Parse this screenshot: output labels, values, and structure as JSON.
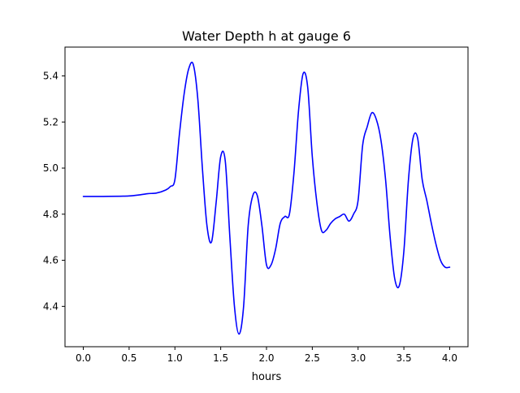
{
  "chart_data": {
    "type": "line",
    "title": "Water Depth h at gauge 6",
    "xlabel": "hours",
    "ylabel": "",
    "xlim": [
      -0.2,
      4.2
    ],
    "ylim": [
      4.225,
      5.525
    ],
    "xticks": [
      0.0,
      0.5,
      1.0,
      1.5,
      2.0,
      2.5,
      3.0,
      3.5,
      4.0
    ],
    "xtick_labels": [
      "0.0",
      "0.5",
      "1.0",
      "1.5",
      "2.0",
      "2.5",
      "3.0",
      "3.5",
      "4.0"
    ],
    "yticks": [
      4.4,
      4.6,
      4.8,
      5.0,
      5.2,
      5.4
    ],
    "ytick_labels": [
      "4.4",
      "4.6",
      "4.8",
      "5.0",
      "5.2",
      "5.4"
    ],
    "grid": false,
    "series": [
      {
        "color": "#0000ff",
        "x": [
          0.0,
          0.2,
          0.4,
          0.5,
          0.6,
          0.7,
          0.8,
          0.9,
          0.95,
          1.0,
          1.05,
          1.1,
          1.15,
          1.2,
          1.25,
          1.3,
          1.35,
          1.4,
          1.45,
          1.5,
          1.55,
          1.6,
          1.65,
          1.7,
          1.75,
          1.8,
          1.85,
          1.9,
          1.95,
          2.0,
          2.05,
          2.1,
          2.15,
          2.2,
          2.25,
          2.3,
          2.35,
          2.4,
          2.45,
          2.5,
          2.55,
          2.6,
          2.65,
          2.7,
          2.75,
          2.8,
          2.85,
          2.9,
          2.95,
          3.0,
          3.05,
          3.1,
          3.15,
          3.2,
          3.25,
          3.3,
          3.35,
          3.4,
          3.45,
          3.5,
          3.55,
          3.6,
          3.65,
          3.7,
          3.75,
          3.8,
          3.85,
          3.9,
          3.95,
          4.0
        ],
        "y": [
          4.877,
          4.877,
          4.878,
          4.879,
          4.883,
          4.889,
          4.892,
          4.905,
          4.92,
          4.95,
          5.15,
          5.32,
          5.43,
          5.45,
          5.3,
          5.0,
          4.75,
          4.68,
          4.85,
          5.05,
          5.03,
          4.7,
          4.4,
          4.28,
          4.4,
          4.75,
          4.88,
          4.88,
          4.75,
          4.58,
          4.58,
          4.65,
          4.76,
          4.79,
          4.8,
          4.98,
          5.25,
          5.41,
          5.35,
          5.05,
          4.85,
          4.73,
          4.73,
          4.76,
          4.78,
          4.79,
          4.8,
          4.77,
          4.8,
          4.86,
          5.1,
          5.18,
          5.24,
          5.21,
          5.12,
          4.95,
          4.7,
          4.52,
          4.49,
          4.64,
          4.95,
          5.13,
          5.13,
          4.95,
          4.86,
          4.76,
          4.67,
          4.6,
          4.57,
          4.57
        ]
      }
    ]
  }
}
